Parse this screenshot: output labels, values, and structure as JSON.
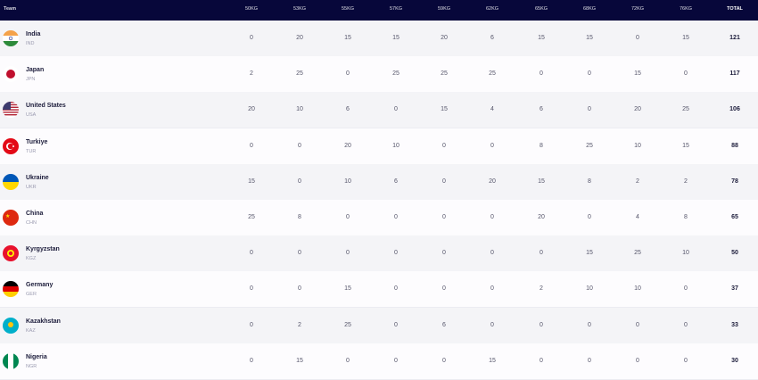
{
  "header": {
    "team": "Team",
    "weights": [
      "50KG",
      "53KG",
      "55KG",
      "57KG",
      "59KG",
      "62KG",
      "65KG",
      "68KG",
      "72KG",
      "76KG"
    ],
    "total": "TOTAL"
  },
  "colors": {
    "header_bg": "#07073a",
    "row_alt": "#f4f4f7"
  },
  "teams": [
    {
      "name": "India",
      "code": "IND",
      "flag": "india-flag-icon",
      "scores": [
        "0",
        "20",
        "15",
        "15",
        "20",
        "6",
        "15",
        "15",
        "0",
        "15"
      ],
      "total": "121"
    },
    {
      "name": "Japan",
      "code": "JPN",
      "flag": "japan-flag-icon",
      "scores": [
        "2",
        "25",
        "0",
        "25",
        "25",
        "25",
        "0",
        "0",
        "15",
        "0"
      ],
      "total": "117"
    },
    {
      "name": "United States",
      "code": "USA",
      "flag": "usa-flag-icon",
      "scores": [
        "20",
        "10",
        "6",
        "0",
        "15",
        "4",
        "6",
        "0",
        "20",
        "25"
      ],
      "total": "106"
    },
    {
      "name": "Turkiye",
      "code": "TUR",
      "flag": "turkiye-flag-icon",
      "scores": [
        "0",
        "0",
        "20",
        "10",
        "0",
        "0",
        "8",
        "25",
        "10",
        "15"
      ],
      "total": "88"
    },
    {
      "name": "Ukraine",
      "code": "UKR",
      "flag": "ukraine-flag-icon",
      "scores": [
        "15",
        "0",
        "10",
        "6",
        "0",
        "20",
        "15",
        "8",
        "2",
        "2"
      ],
      "total": "78"
    },
    {
      "name": "China",
      "code": "CHN",
      "flag": "china-flag-icon",
      "scores": [
        "25",
        "8",
        "0",
        "0",
        "0",
        "0",
        "20",
        "0",
        "4",
        "8"
      ],
      "total": "65"
    },
    {
      "name": "Kyrgyzstan",
      "code": "KGZ",
      "flag": "kyrgyzstan-flag-icon",
      "scores": [
        "0",
        "0",
        "0",
        "0",
        "0",
        "0",
        "0",
        "15",
        "25",
        "10"
      ],
      "total": "50"
    },
    {
      "name": "Germany",
      "code": "GER",
      "flag": "germany-flag-icon",
      "scores": [
        "0",
        "0",
        "15",
        "0",
        "0",
        "0",
        "2",
        "10",
        "10",
        "0"
      ],
      "total": "37"
    },
    {
      "name": "Kazakhstan",
      "code": "KAZ",
      "flag": "kazakhstan-flag-icon",
      "scores": [
        "0",
        "2",
        "25",
        "0",
        "6",
        "0",
        "0",
        "0",
        "0",
        "0"
      ],
      "total": "33"
    },
    {
      "name": "Nigeria",
      "code": "NGR",
      "flag": "nigeria-flag-icon",
      "scores": [
        "0",
        "15",
        "0",
        "0",
        "0",
        "15",
        "0",
        "0",
        "0",
        "0"
      ],
      "total": "30"
    }
  ]
}
